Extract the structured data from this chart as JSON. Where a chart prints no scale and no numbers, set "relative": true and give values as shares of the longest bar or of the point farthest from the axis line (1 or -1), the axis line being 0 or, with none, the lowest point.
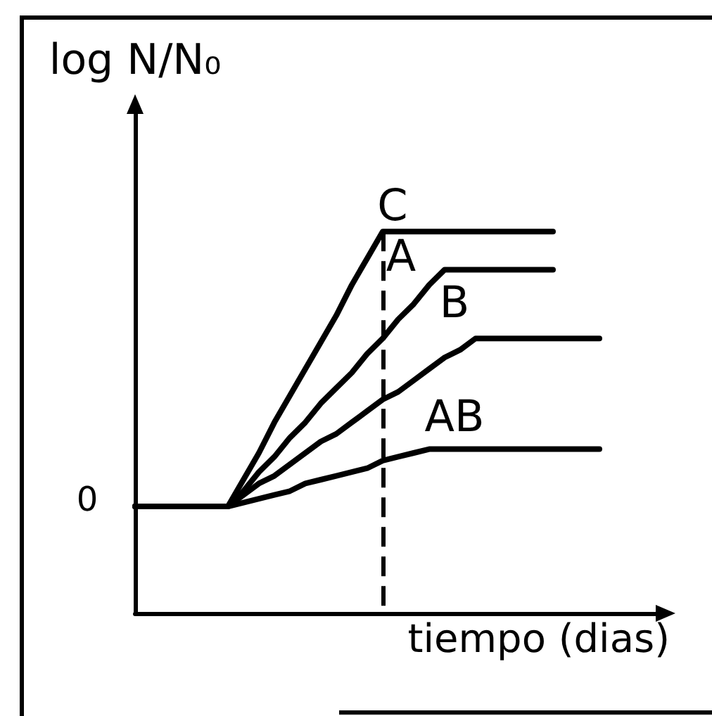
{
  "chart_data": {
    "type": "line",
    "relative": true,
    "xlabel": "tiempo (dias)",
    "ylabel": "log N/N₀",
    "categories": [
      null,
      null,
      null,
      null,
      null,
      null,
      null,
      null,
      null,
      null,
      null,
      null,
      null,
      null,
      null,
      null,
      null,
      null,
      null,
      null,
      null,
      null,
      null,
      null,
      null,
      null,
      null,
      null,
      null,
      null,
      null,
      null,
      null,
      null,
      null
    ],
    "series": [
      {
        "name": "C",
        "color": "#000000",
        "values": [
          0.28,
          0.28,
          0.28,
          0.28,
          0.28,
          0.28,
          0.28,
          0.35,
          0.42,
          0.5,
          0.57,
          0.64,
          0.71,
          0.78,
          0.86,
          0.93,
          1.0,
          1.0,
          1.0,
          1.0,
          1.0,
          1.0,
          1.0,
          1.0,
          1.0,
          1.0,
          1.0,
          1.0,
          null,
          null,
          null,
          null,
          null,
          null,
          null
        ]
      },
      {
        "name": "A",
        "color": "#000000",
        "values": [
          0.28,
          0.28,
          0.28,
          0.28,
          0.28,
          0.28,
          0.28,
          0.32,
          0.37,
          0.41,
          0.46,
          0.5,
          0.55,
          0.59,
          0.63,
          0.68,
          0.72,
          0.77,
          0.81,
          0.86,
          0.9,
          0.9,
          0.9,
          0.9,
          0.9,
          0.9,
          0.9,
          0.9,
          null,
          null,
          null,
          null,
          null,
          null,
          null
        ]
      },
      {
        "name": "B",
        "color": "#000000",
        "values": [
          0.28,
          0.28,
          0.28,
          0.28,
          0.28,
          0.28,
          0.28,
          0.31,
          0.34,
          0.36,
          0.39,
          0.42,
          0.45,
          0.47,
          0.5,
          0.53,
          0.56,
          0.58,
          0.61,
          0.64,
          0.67,
          0.69,
          0.72,
          0.72,
          0.72,
          0.72,
          0.72,
          0.72,
          0.72,
          0.72,
          0.72,
          null,
          null,
          null,
          null
        ]
      },
      {
        "name": "AB",
        "color": "#000000",
        "values": [
          0.28,
          0.28,
          0.28,
          0.28,
          0.28,
          0.28,
          0.28,
          0.29,
          0.3,
          0.31,
          0.32,
          0.34,
          0.35,
          0.36,
          0.37,
          0.38,
          0.4,
          0.41,
          0.42,
          0.43,
          0.43,
          0.43,
          0.43,
          0.43,
          0.43,
          0.43,
          0.43,
          0.43,
          0.43,
          0.43,
          0.43,
          null,
          null,
          null,
          null
        ]
      }
    ],
    "annotations": [
      "0"
    ],
    "marker": "none",
    "line_style": "solid"
  }
}
